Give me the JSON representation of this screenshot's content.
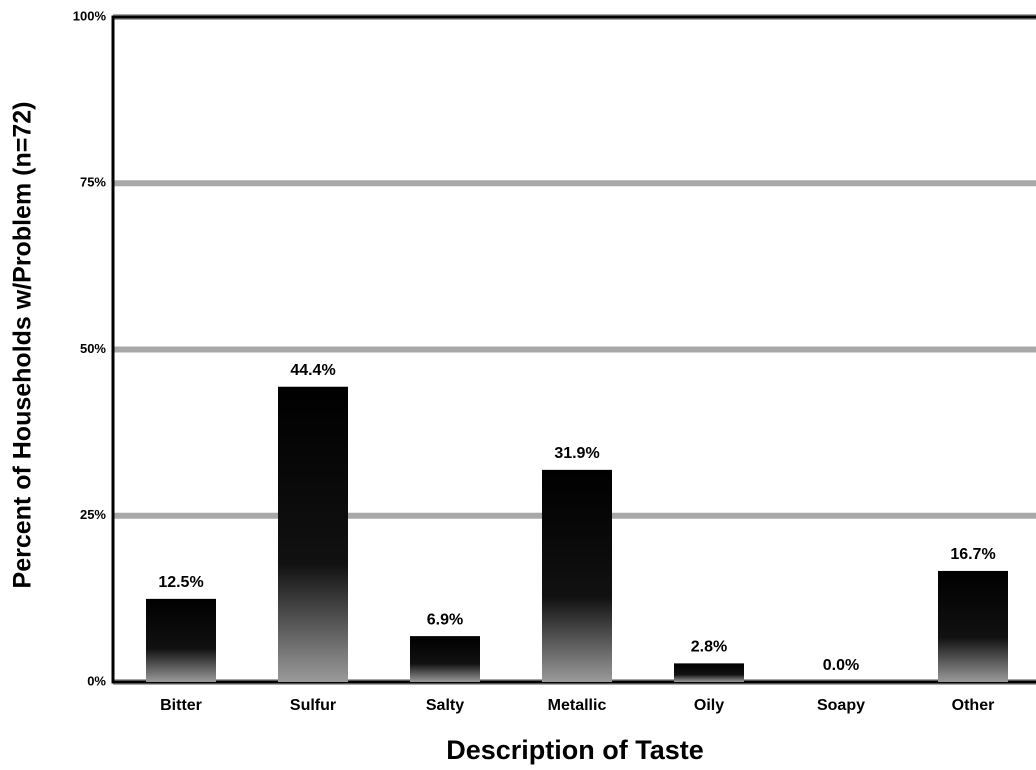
{
  "chart_data": {
    "type": "bar",
    "x_label": "Description of Taste",
    "y_label": "Percent of Households w/Problem (n=72)",
    "categories": [
      "Bitter",
      "Sulfur",
      "Salty",
      "Metallic",
      "Oily",
      "Soapy",
      "Other"
    ],
    "values": [
      12.5,
      44.4,
      6.9,
      31.9,
      2.8,
      0.0,
      16.7
    ],
    "value_labels": [
      "12.5%",
      "44.4%",
      "6.9%",
      "31.9%",
      "2.8%",
      "0.0%",
      "16.7%"
    ],
    "color": "#000000",
    "ylim": [
      0,
      100
    ],
    "yticks": [
      {
        "value": 0,
        "label": "0%"
      },
      {
        "value": 25,
        "label": "25%"
      },
      {
        "value": 50,
        "label": "50%"
      },
      {
        "value": 75,
        "label": "75%"
      },
      {
        "value": 100,
        "label": "100%"
      }
    ],
    "grid": true
  }
}
